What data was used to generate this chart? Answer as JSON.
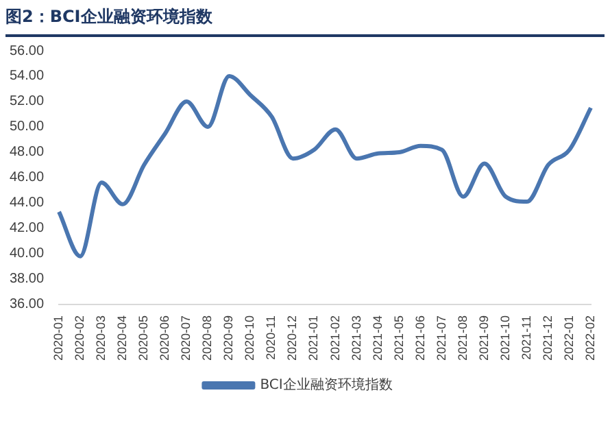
{
  "chart_data": {
    "type": "line",
    "title": "图2：BCI企业融资环境指数",
    "categories": [
      "2020-01",
      "2020-02",
      "2020-03",
      "2020-04",
      "2020-05",
      "2020-06",
      "2020-07",
      "2020-08",
      "2020-09",
      "2020-10",
      "2020-11",
      "2020-12",
      "2021-01",
      "2021-02",
      "2021-03",
      "2021-04",
      "2021-05",
      "2021-06",
      "2021-07",
      "2021-08",
      "2021-09",
      "2021-10",
      "2021-11",
      "2021-12",
      "2022-01",
      "2022-02"
    ],
    "series": [
      {
        "name": "BCI企业融资环境指数",
        "color": "#4a76b0",
        "values": [
          43.3,
          39.8,
          45.6,
          43.9,
          47.0,
          49.5,
          52.0,
          50.0,
          54.0,
          52.5,
          50.8,
          47.5,
          48.2,
          49.8,
          47.5,
          47.9,
          48.0,
          48.5,
          48.2,
          44.5,
          47.1,
          44.5,
          44.1,
          47.0,
          48.2,
          51.5
        ]
      }
    ],
    "ylim": [
      36,
      56
    ],
    "yticks": [
      {
        "value": 36,
        "label": "36.00"
      },
      {
        "value": 38,
        "label": "38.00"
      },
      {
        "value": 40,
        "label": "40.00"
      },
      {
        "value": 42,
        "label": "42.00"
      },
      {
        "value": 44,
        "label": "44.00"
      },
      {
        "value": 46,
        "label": "46.00"
      },
      {
        "value": 48,
        "label": "48.00"
      },
      {
        "value": 50,
        "label": "50.00"
      },
      {
        "value": 52,
        "label": "52.00"
      },
      {
        "value": 54,
        "label": "54.00"
      },
      {
        "value": 56,
        "label": "56.00"
      }
    ],
    "grid": false,
    "legend": "bottom",
    "marker": "none",
    "line_style": "solid"
  }
}
